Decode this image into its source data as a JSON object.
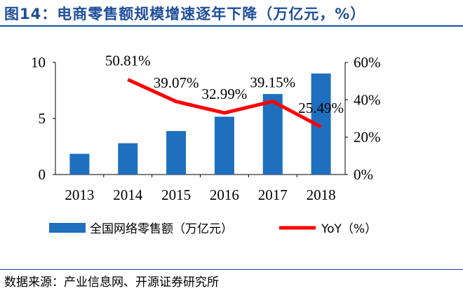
{
  "title": "图14：电商零售额规模增速逐年下降（万亿元，%）",
  "source": "数据来源：产业信息网、开源证券研究所",
  "chart_data": {
    "type": "bar+line",
    "categories": [
      "2013",
      "2014",
      "2015",
      "2016",
      "2017",
      "2018"
    ],
    "series": [
      {
        "name": "全国网络零售额（万亿元）",
        "type": "bar",
        "axis": "left",
        "color": "#1f6fbf",
        "values": [
          1.85,
          2.79,
          3.88,
          5.16,
          7.18,
          9.01
        ]
      },
      {
        "name": "YoY（%）",
        "type": "line",
        "axis": "right",
        "color": "#ff0000",
        "values": [
          null,
          50.81,
          39.07,
          32.99,
          39.15,
          25.49
        ],
        "labels": [
          "",
          "50.81%",
          "39.07%",
          "32.99%",
          "39.15%",
          "25.49%"
        ]
      }
    ],
    "y_left": {
      "range": [
        0,
        10
      ],
      "ticks": [
        "0",
        "5",
        "10"
      ]
    },
    "y_right": {
      "range": [
        0,
        60
      ],
      "ticks": [
        "0%",
        "20%",
        "40%",
        "60%"
      ]
    },
    "grid": false,
    "legend": "bottom"
  }
}
